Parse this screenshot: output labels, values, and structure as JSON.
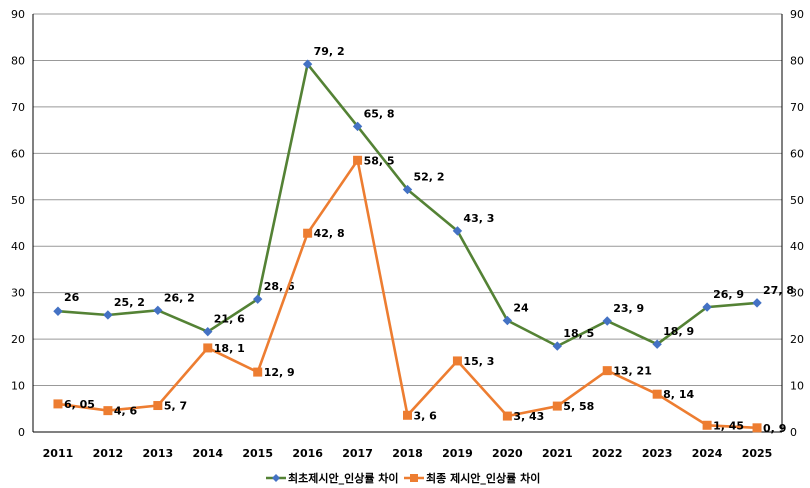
{
  "chart_data": {
    "type": "line",
    "categories": [
      "2011",
      "2012",
      "2013",
      "2014",
      "2015",
      "2016",
      "2017",
      "2018",
      "2019",
      "2020",
      "2021",
      "2022",
      "2023",
      "2024",
      "2025"
    ],
    "series": [
      {
        "name": "최초제시안_인상률 차이",
        "color": "#548235",
        "marker_color": "#4472C4",
        "marker": "diamond",
        "values": [
          26,
          25.2,
          26.2,
          21.6,
          28.6,
          79.2,
          65.8,
          52.2,
          43.3,
          24,
          18.5,
          23.9,
          18.9,
          26.9,
          27.8
        ],
        "labels": [
          "26",
          "25, 2",
          "26, 2",
          "21, 6",
          "28, 6",
          "79, 2",
          "65, 8",
          "52, 2",
          "43, 3",
          "24",
          "18, 5",
          "23, 9",
          "18, 9",
          "26, 9",
          "27, 8"
        ]
      },
      {
        "name": "최종 제시안_인상률 차이",
        "color": "#ED7D31",
        "marker_color": "#ED7D31",
        "marker": "square",
        "values": [
          6.05,
          4.6,
          5.7,
          18.1,
          12.9,
          42.8,
          58.5,
          3.6,
          15.3,
          3.43,
          5.58,
          13.21,
          8.14,
          1.45,
          0.9
        ],
        "labels": [
          "6, 05",
          "4, 6",
          "5, 7",
          "18, 1",
          "12, 9",
          "42, 8",
          "58, 5",
          "3, 6",
          "15, 3",
          "3, 43",
          "5, 58",
          "13, 21",
          "8, 14",
          "1, 45",
          "0, 9"
        ]
      }
    ],
    "y_ticks": [
      "0",
      "10",
      "20",
      "30",
      "40",
      "50",
      "60",
      "70",
      "80",
      "90"
    ],
    "ylim": [
      0,
      90
    ],
    "y2lim": [
      0,
      90
    ],
    "grid": true,
    "legend": "bottom"
  }
}
